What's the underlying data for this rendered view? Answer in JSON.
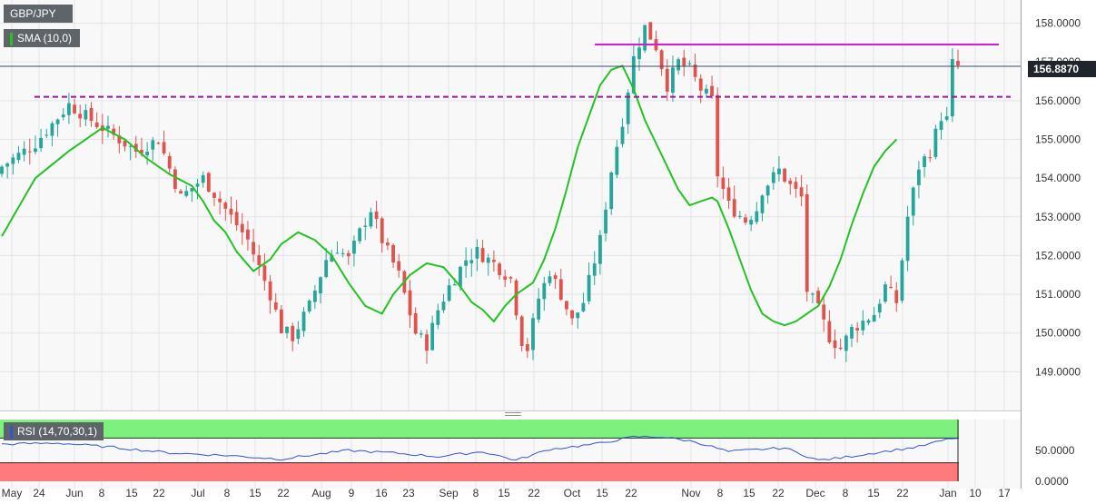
{
  "symbol_label": "GBP/JPY",
  "sma_label": "SMA (10,0)",
  "rsi_label": "RSI (14,70,30,1)",
  "current_price_label": "156.8870",
  "colors": {
    "up": "#26a69a",
    "down": "#e0524c",
    "sma": "#22c322",
    "rsi": "#2f55d4",
    "resistance": "#d61bd6",
    "support_dashed": "#9a1a9a",
    "rsi_overbought_zone": "#7ef07e",
    "rsi_oversold_zone": "#ff7a7a"
  },
  "chart_data": {
    "type": "candlestick",
    "price_axis": {
      "ticks": [
        "158.0000",
        "157.0000",
        "156.0000",
        "155.0000",
        "154.0000",
        "153.0000",
        "152.0000",
        "151.0000",
        "150.0000",
        "149.0000"
      ],
      "range": [
        148.0,
        158.6
      ]
    },
    "rsi_axis": {
      "ticks": [
        "50.0000",
        "0.0000"
      ],
      "range": [
        0,
        100
      ]
    },
    "x_tick_labels": [
      "May",
      "24",
      "Jun",
      "8",
      "15",
      "22",
      "Jul",
      "8",
      "15",
      "22",
      "Aug",
      "9",
      "16",
      "23",
      "Sep",
      "8",
      "15",
      "22",
      "Oct",
      "15",
      "22",
      "Nov",
      "8",
      "15",
      "22",
      "Dec",
      "8",
      "15",
      "22",
      "Jan",
      "10",
      "17"
    ],
    "horizontal_lines": [
      {
        "kind": "resistance",
        "value": 157.45
      },
      {
        "kind": "support",
        "value": 156.1,
        "style": "dashed"
      },
      {
        "kind": "last_price",
        "value": 156.887
      }
    ],
    "rsi_levels": {
      "overbought": 70,
      "oversold": 30
    },
    "series": [
      {
        "name": "GBP/JPY",
        "anchors": [
          [
            0,
            154.3
          ],
          [
            6,
            154.9
          ],
          [
            12,
            155.9
          ],
          [
            18,
            155.3
          ],
          [
            24,
            154.7
          ],
          [
            28,
            155.0
          ],
          [
            32,
            153.5
          ],
          [
            36,
            154.0
          ],
          [
            40,
            153.2
          ],
          [
            44,
            152.4
          ],
          [
            48,
            151.0
          ],
          [
            50,
            150.1
          ],
          [
            52,
            149.9
          ],
          [
            55,
            150.7
          ],
          [
            58,
            151.9
          ],
          [
            60,
            152.2
          ],
          [
            62,
            151.9
          ],
          [
            64,
            152.6
          ],
          [
            66,
            153.2
          ],
          [
            68,
            152.4
          ],
          [
            71,
            151.5
          ],
          [
            74,
            150.0
          ],
          [
            76,
            149.7
          ],
          [
            78,
            150.6
          ],
          [
            80,
            151.2
          ],
          [
            83,
            151.9
          ],
          [
            85,
            152.1
          ],
          [
            88,
            151.8
          ],
          [
            91,
            151.4
          ],
          [
            93,
            149.8
          ],
          [
            94,
            149.6
          ],
          [
            96,
            150.9
          ],
          [
            98,
            151.6
          ],
          [
            100,
            151.0
          ],
          [
            102,
            150.3
          ],
          [
            104,
            150.8
          ],
          [
            107,
            152.4
          ],
          [
            109,
            154.2
          ],
          [
            111,
            155.5
          ],
          [
            113,
            157.1
          ],
          [
            115,
            157.9
          ],
          [
            117,
            157.4
          ],
          [
            119,
            156.4
          ],
          [
            121,
            157.0
          ],
          [
            123,
            156.8
          ],
          [
            125,
            156.3
          ],
          [
            127,
            156.0
          ],
          [
            128,
            154.1
          ],
          [
            130,
            153.3
          ],
          [
            133,
            152.9
          ],
          [
            135,
            153.2
          ],
          [
            136,
            153.7
          ],
          [
            139,
            154.2
          ],
          [
            141,
            153.8
          ],
          [
            143,
            153.5
          ],
          [
            144,
            151.1
          ],
          [
            146,
            150.6
          ],
          [
            148,
            149.9
          ],
          [
            150,
            149.6
          ],
          [
            152,
            150.1
          ],
          [
            154,
            150.3
          ],
          [
            156,
            150.5
          ],
          [
            158,
            151.2
          ],
          [
            160,
            150.8
          ],
          [
            162,
            153.0
          ],
          [
            164,
            154.3
          ],
          [
            166,
            154.7
          ],
          [
            168,
            155.6
          ],
          [
            169,
            155.5
          ],
          [
            170,
            156.95
          ],
          [
            171,
            156.89
          ]
        ]
      },
      {
        "name": "SMA (10,0)",
        "anchors": [
          [
            0,
            152.5
          ],
          [
            6,
            154.0
          ],
          [
            12,
            154.7
          ],
          [
            18,
            155.3
          ],
          [
            22,
            155.0
          ],
          [
            26,
            154.5
          ],
          [
            30,
            154.1
          ],
          [
            34,
            153.8
          ],
          [
            36,
            153.4
          ],
          [
            38,
            152.9
          ],
          [
            40,
            152.6
          ],
          [
            42,
            152.1
          ],
          [
            45,
            151.6
          ],
          [
            48,
            151.9
          ],
          [
            50,
            152.3
          ],
          [
            53,
            152.6
          ],
          [
            56,
            152.4
          ],
          [
            59,
            152.0
          ],
          [
            62,
            151.3
          ],
          [
            65,
            150.7
          ],
          [
            68,
            150.5
          ],
          [
            70,
            151.0
          ],
          [
            73,
            151.5
          ],
          [
            76,
            151.8
          ],
          [
            79,
            151.7
          ],
          [
            82,
            151.2
          ],
          [
            84,
            150.8
          ],
          [
            86,
            150.6
          ],
          [
            88,
            150.3
          ],
          [
            90,
            150.7
          ],
          [
            92,
            151.0
          ],
          [
            95,
            151.3
          ],
          [
            97,
            151.9
          ],
          [
            99,
            152.7
          ],
          [
            101,
            153.7
          ],
          [
            103,
            154.8
          ],
          [
            105,
            155.6
          ],
          [
            107,
            156.4
          ],
          [
            109,
            156.8
          ],
          [
            111,
            156.9
          ],
          [
            113,
            156.3
          ],
          [
            115,
            155.5
          ],
          [
            117,
            154.9
          ],
          [
            119,
            154.3
          ],
          [
            121,
            153.7
          ],
          [
            123,
            153.3
          ],
          [
            125,
            153.4
          ],
          [
            127,
            153.5
          ],
          [
            128,
            153.4
          ],
          [
            130,
            152.7
          ],
          [
            132,
            151.9
          ],
          [
            134,
            151.1
          ],
          [
            136,
            150.5
          ],
          [
            138,
            150.3
          ],
          [
            140,
            150.2
          ],
          [
            142,
            150.3
          ],
          [
            144,
            150.5
          ],
          [
            146,
            150.7
          ],
          [
            148,
            151.2
          ],
          [
            150,
            151.9
          ],
          [
            152,
            152.8
          ],
          [
            154,
            153.6
          ],
          [
            156,
            154.3
          ],
          [
            158,
            154.7
          ],
          [
            160,
            155.0
          ]
        ]
      },
      {
        "name": "RSI (14,70,30,1)",
        "anchors": [
          [
            0,
            60
          ],
          [
            10,
            62
          ],
          [
            20,
            55
          ],
          [
            30,
            46
          ],
          [
            40,
            42
          ],
          [
            50,
            36
          ],
          [
            55,
            42
          ],
          [
            62,
            50
          ],
          [
            70,
            46
          ],
          [
            78,
            40
          ],
          [
            86,
            48
          ],
          [
            92,
            34
          ],
          [
            98,
            52
          ],
          [
            106,
            60
          ],
          [
            113,
            72
          ],
          [
            118,
            72
          ],
          [
            124,
            64
          ],
          [
            130,
            48
          ],
          [
            136,
            52
          ],
          [
            140,
            54
          ],
          [
            146,
            34
          ],
          [
            150,
            38
          ],
          [
            156,
            46
          ],
          [
            164,
            56
          ],
          [
            170,
            70
          ],
          [
            171,
            69
          ]
        ]
      }
    ],
    "axis_ranges": {
      "x_index": [
        0,
        171
      ]
    }
  }
}
